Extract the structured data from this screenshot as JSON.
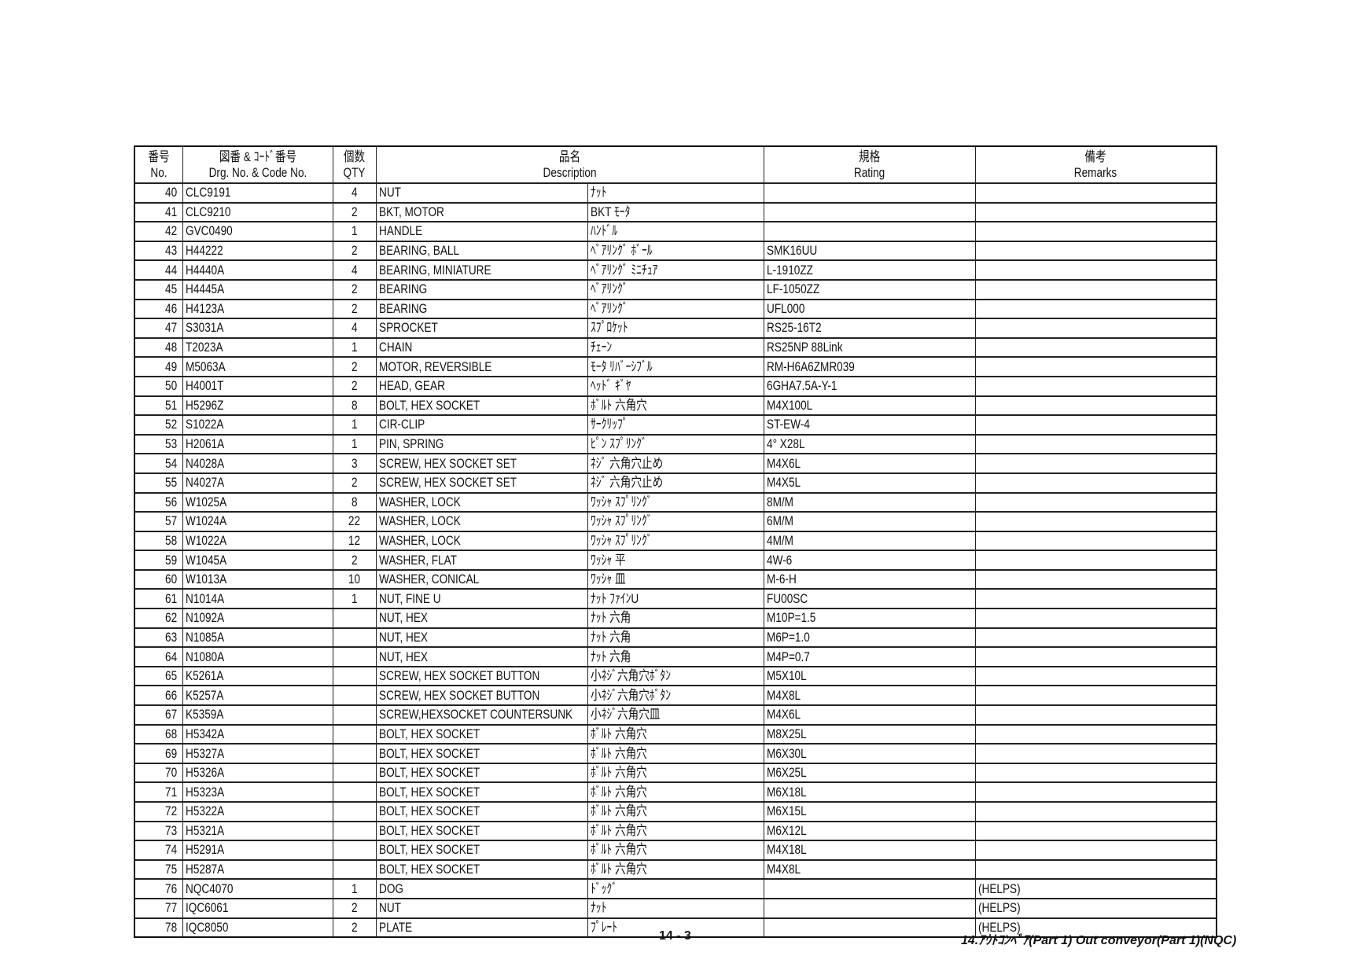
{
  "header": {
    "no_jp": "番号",
    "no_en": "No.",
    "code_jp": "図番 & ｺｰﾄﾞ番号",
    "code_en": "Drg. No. & Code No.",
    "qty_jp": "個数",
    "qty_en": "QTY",
    "desc_jp": "品名",
    "desc_en": "Description",
    "rating_jp": "規格",
    "rating_en": "Rating",
    "remarks_jp": "備考",
    "remarks_en": "Remarks"
  },
  "rows": [
    [
      "40",
      "CLC9191",
      "4",
      "NUT",
      "ﾅｯﾄ",
      "",
      ""
    ],
    [
      "41",
      "CLC9210",
      "2",
      "BKT, MOTOR",
      "BKT ﾓｰﾀ",
      "",
      ""
    ],
    [
      "42",
      "GVC0490",
      "1",
      "HANDLE",
      "ﾊﾝﾄﾞﾙ",
      "",
      ""
    ],
    [
      "43",
      "H44222",
      "2",
      "BEARING, BALL",
      "ﾍﾞｱﾘﾝｸﾞ ﾎﾞｰﾙ",
      "SMK16UU",
      ""
    ],
    [
      "44",
      "H4440A",
      "4",
      "BEARING, MINIATURE",
      "ﾍﾞｱﾘﾝｸﾞ ﾐﾆﾁｭｱ",
      "L-1910ZZ",
      ""
    ],
    [
      "45",
      "H4445A",
      "2",
      "BEARING",
      "ﾍﾞｱﾘﾝｸﾞ",
      "LF-1050ZZ",
      ""
    ],
    [
      "46",
      "H4123A",
      "2",
      "BEARING",
      "ﾍﾞｱﾘﾝｸﾞ",
      "UFL000",
      ""
    ],
    [
      "47",
      "S3031A",
      "4",
      "SPROCKET",
      "ｽﾌﾟﾛｹｯﾄ",
      "RS25-16T2",
      ""
    ],
    [
      "48",
      "T2023A",
      "1",
      "CHAIN",
      "ﾁｪｰﾝ",
      "RS25NP 88Link",
      ""
    ],
    [
      "49",
      "M5063A",
      "2",
      "MOTOR, REVERSIBLE",
      "ﾓｰﾀ ﾘﾊﾞｰｼﾌﾞﾙ",
      "RM-H6A6ZMR039",
      ""
    ],
    [
      "50",
      "H4001T",
      "2",
      "HEAD, GEAR",
      "ﾍｯﾄﾞ ｷﾞﾔ",
      "6GHA7.5A-Y-1",
      ""
    ],
    [
      "51",
      "H5296Z",
      "8",
      "BOLT, HEX SOCKET",
      "ﾎﾞﾙﾄ 六角穴",
      "M4X100L",
      ""
    ],
    [
      "52",
      "S1022A",
      "1",
      "CIR-CLIP",
      "ｻｰｸﾘｯﾌﾟ",
      "ST-EW-4",
      ""
    ],
    [
      "53",
      "H2061A",
      "1",
      "PIN, SPRING",
      "ﾋﾟﾝ ｽﾌﾟﾘﾝｸﾞ",
      "4° X28L",
      ""
    ],
    [
      "54",
      "N4028A",
      "3",
      "SCREW, HEX SOCKET SET",
      "ﾈｼﾞ 六角穴止め",
      "M4X6L",
      ""
    ],
    [
      "55",
      "N4027A",
      "2",
      "SCREW, HEX SOCKET SET",
      "ﾈｼﾞ 六角穴止め",
      "M4X5L",
      ""
    ],
    [
      "56",
      "W1025A",
      "8",
      "WASHER, LOCK",
      "ﾜｯｼｬ ｽﾌﾟﾘﾝｸﾞ",
      "8M/M",
      ""
    ],
    [
      "57",
      "W1024A",
      "22",
      "WASHER, LOCK",
      "ﾜｯｼｬ ｽﾌﾟﾘﾝｸﾞ",
      "6M/M",
      ""
    ],
    [
      "58",
      "W1022A",
      "12",
      "WASHER, LOCK",
      "ﾜｯｼｬ ｽﾌﾟﾘﾝｸﾞ",
      "4M/M",
      ""
    ],
    [
      "59",
      "W1045A",
      "2",
      "WASHER, FLAT",
      "ﾜｯｼｬ 平",
      "4W-6",
      ""
    ],
    [
      "60",
      "W1013A",
      "10",
      "WASHER, CONICAL",
      "ﾜｯｼｬ 皿",
      "M-6-H",
      ""
    ],
    [
      "61",
      "N1014A",
      "1",
      "NUT, FINE U",
      "ﾅｯﾄ ﾌｧｲﾝU",
      "FU00SC",
      ""
    ],
    [
      "62",
      "N1092A",
      "",
      "NUT, HEX",
      "ﾅｯﾄ 六角",
      "M10P=1.5",
      ""
    ],
    [
      "63",
      "N1085A",
      "",
      "NUT, HEX",
      "ﾅｯﾄ 六角",
      "M6P=1.0",
      ""
    ],
    [
      "64",
      "N1080A",
      "",
      "NUT, HEX",
      "ﾅｯﾄ 六角",
      "M4P=0.7",
      ""
    ],
    [
      "65",
      "K5261A",
      "",
      "SCREW, HEX SOCKET BUTTON",
      "小ﾈｼﾞ六角穴ﾎﾞﾀﾝ",
      "M5X10L",
      ""
    ],
    [
      "66",
      "K5257A",
      "",
      "SCREW, HEX SOCKET BUTTON",
      "小ﾈｼﾞ六角穴ﾎﾞﾀﾝ",
      "M4X8L",
      ""
    ],
    [
      "67",
      "K5359A",
      "",
      "SCREW,HEXSOCKET COUNTERSUNK",
      "小ﾈｼﾞ六角穴皿",
      "M4X6L",
      ""
    ],
    [
      "68",
      "H5342A",
      "",
      "BOLT, HEX SOCKET",
      "ﾎﾞﾙﾄ 六角穴",
      "M8X25L",
      ""
    ],
    [
      "69",
      "H5327A",
      "",
      "BOLT, HEX SOCKET",
      "ﾎﾞﾙﾄ 六角穴",
      "M6X30L",
      ""
    ],
    [
      "70",
      "H5326A",
      "",
      "BOLT, HEX SOCKET",
      "ﾎﾞﾙﾄ 六角穴",
      "M6X25L",
      ""
    ],
    [
      "71",
      "H5323A",
      "",
      "BOLT, HEX SOCKET",
      "ﾎﾞﾙﾄ 六角穴",
      "M6X18L",
      ""
    ],
    [
      "72",
      "H5322A",
      "",
      "BOLT, HEX SOCKET",
      "ﾎﾞﾙﾄ 六角穴",
      "M6X15L",
      ""
    ],
    [
      "73",
      "H5321A",
      "",
      "BOLT, HEX SOCKET",
      "ﾎﾞﾙﾄ 六角穴",
      "M6X12L",
      ""
    ],
    [
      "74",
      "H5291A",
      "",
      "BOLT, HEX SOCKET",
      "ﾎﾞﾙﾄ 六角穴",
      "M4X18L",
      ""
    ],
    [
      "75",
      "H5287A",
      "",
      "BOLT, HEX SOCKET",
      "ﾎﾞﾙﾄ 六角穴",
      "M4X8L",
      ""
    ],
    [
      "76",
      "NQC4070",
      "1",
      "DOG",
      "ﾄﾞｯｸﾞ",
      "",
      "(HELPS)"
    ],
    [
      "77",
      "IQC6061",
      "2",
      "NUT",
      "ﾅｯﾄ",
      "",
      "(HELPS)"
    ],
    [
      "78",
      "IQC8050",
      "2",
      "PLATE",
      "ﾌﾟﾚｰﾄ",
      "",
      "(HELPS)"
    ]
  ],
  "footer": {
    "page": "14 - 3",
    "title": "14.ｱｳﾄｺﾝﾍﾞｱ(Part 1) Out conveyor(Part 1)(NQC)"
  }
}
